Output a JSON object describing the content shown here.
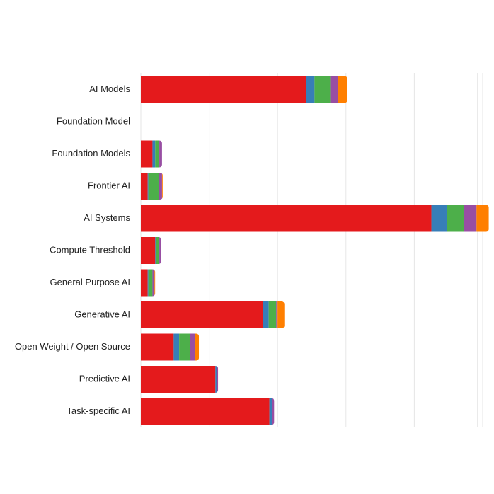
{
  "chart_data": {
    "type": "bar",
    "orientation": "horizontal",
    "stacked": true,
    "title": "",
    "xlabel": "",
    "ylabel": "",
    "xlim": [
      0,
      510
    ],
    "grid": true,
    "legend": "none",
    "categories": [
      "AI Models",
      "Foundation Model",
      "Foundation Models",
      "Frontier AI",
      "AI Systems",
      "Compute Threshold",
      "General Purpose AI",
      "Generative AI",
      "Open Weight / Open Source",
      "Predictive AI",
      "Task-specific AI"
    ],
    "series": [
      {
        "color": "#e41a1c",
        "values": [
          242,
          0,
          17,
          10,
          425,
          21,
          10,
          179,
          48,
          109,
          188
        ]
      },
      {
        "color": "#377eb8",
        "values": [
          12,
          0,
          4,
          1,
          23,
          1,
          1,
          8,
          8,
          2,
          4
        ]
      },
      {
        "color": "#4daf4a",
        "values": [
          23,
          0,
          6,
          15,
          25,
          5,
          6,
          11,
          16,
          0,
          0
        ]
      },
      {
        "color": "#984ea3",
        "values": [
          11,
          0,
          4,
          5,
          18,
          3,
          3,
          2,
          7,
          2,
          3
        ]
      },
      {
        "color": "#ff7f00",
        "values": [
          14,
          0,
          0,
          1,
          18,
          0,
          1,
          10,
          6,
          0,
          0
        ]
      }
    ]
  }
}
